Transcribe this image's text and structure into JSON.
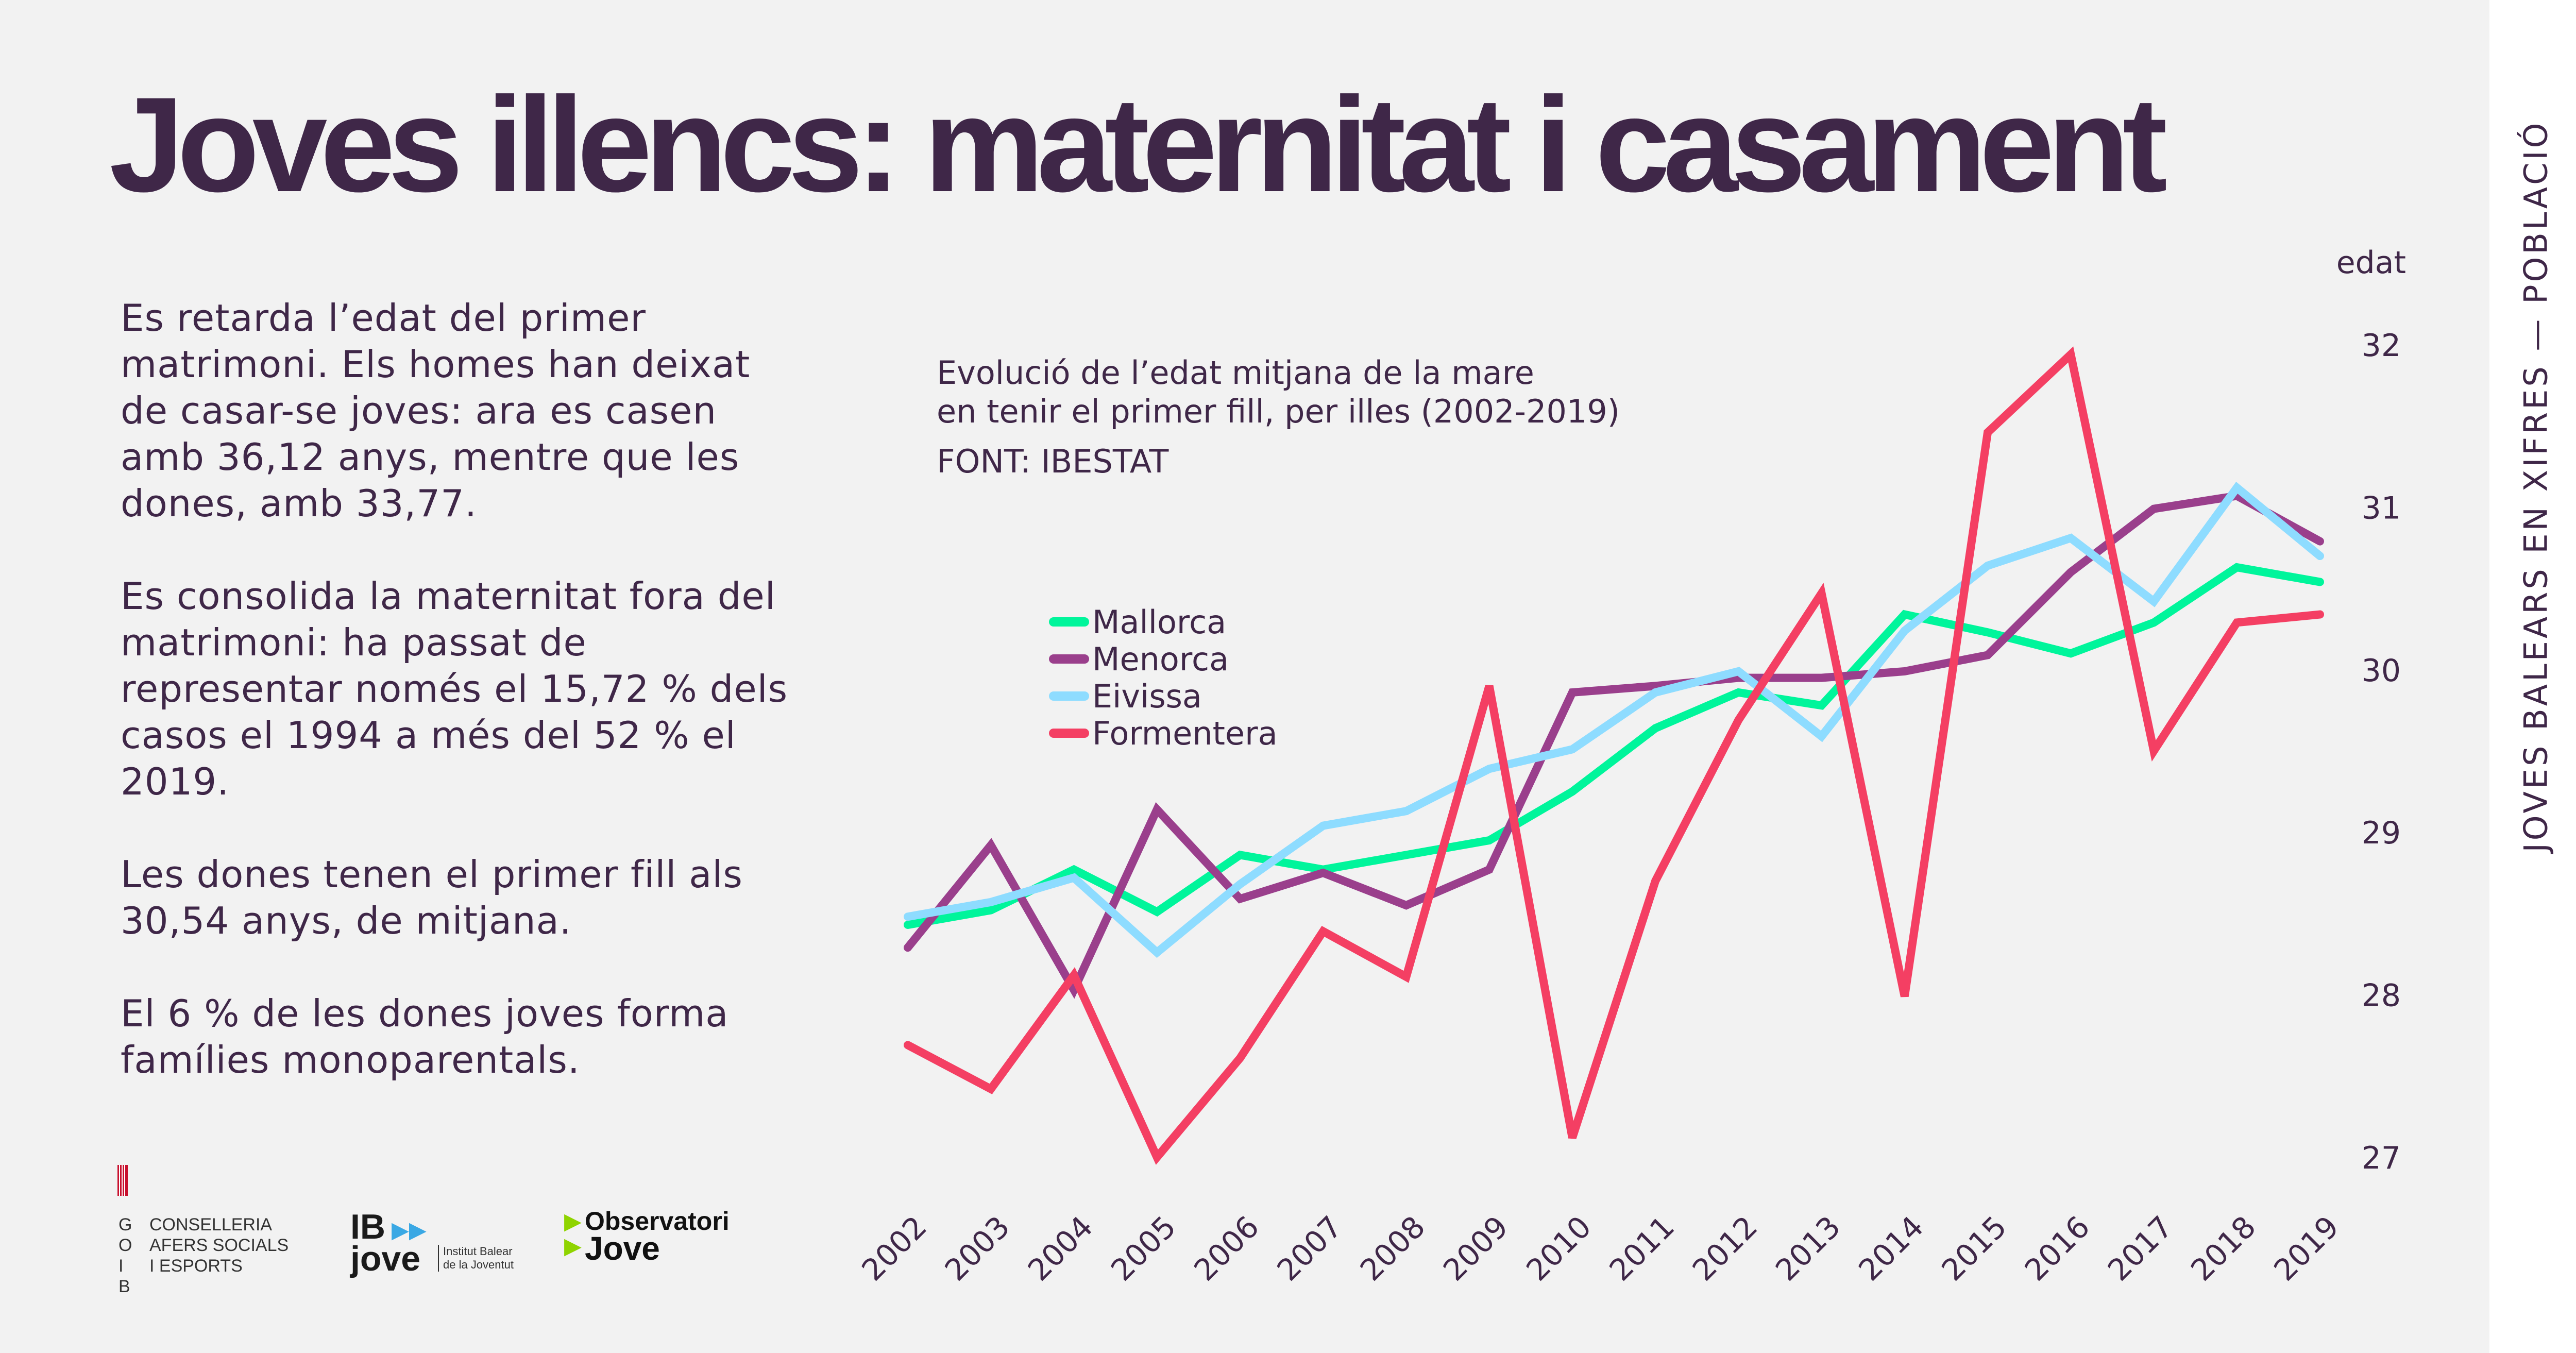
{
  "title": "Joves illencs: maternitat i casament",
  "side_label": "JOVES BALEARS EN XIFRES — POBLACIÓ",
  "paragraphs": [
    "Es retarda l’edat del primer matrimoni. Els homes han deixat de casar-se joves: ara es casen amb 36,12 anys, mentre que les dones, amb 33,77.",
    "Es consolida la maternitat fora del matrimoni: ha passat de representar només el 15,72 % dels casos el 1994 a més del 52 % el 2019.",
    "Les dones tenen el primer fill als 30,54 anys, de mitjana.",
    "El 6 % de les dones joves forma famílies monoparentals."
  ],
  "logos": {
    "goib": {
      "letters": "GOIB",
      "lines": [
        "CONSELLERIA",
        "AFERS SOCIALS",
        "I ESPORTS"
      ]
    },
    "ibjove": {
      "top": "IB",
      "bottom": "jove",
      "caption": [
        "Institut Balear",
        "de la Joventut"
      ]
    },
    "observatori": {
      "top": "Observatori",
      "bottom": "Jove"
    }
  },
  "chart_data": {
    "type": "line",
    "title": "Evolució de l’edat mitjana de la mare en tenir el primer fill, per illes (2002-2019)",
    "title_lines": [
      "Evolució de l’edat mitjana de la mare",
      "en tenir el primer fill, per illes (2002-2019)"
    ],
    "source": "FONT: IBESTAT",
    "ylabel": "edat",
    "ylim": [
      27,
      32
    ],
    "yticks": [
      27,
      28,
      29,
      30,
      31,
      32
    ],
    "y_axis_position": "right",
    "grid": false,
    "legend_position": "middle-left",
    "x": [
      "2002",
      "2003",
      "2004",
      "2005",
      "2006",
      "2007",
      "2008",
      "2009",
      "2010",
      "2011",
      "2012",
      "2013",
      "2014",
      "2015",
      "2016",
      "2017",
      "2018",
      "2019"
    ],
    "series": [
      {
        "name": "Mallorca",
        "color": "#00f59b",
        "values": [
          28.43,
          28.52,
          28.77,
          28.51,
          28.86,
          28.77,
          28.86,
          28.95,
          29.25,
          29.64,
          29.86,
          29.78,
          30.34,
          30.23,
          30.1,
          30.29,
          30.63,
          30.54
        ]
      },
      {
        "name": "Menorca",
        "color": "#9a3f8c",
        "values": [
          28.29,
          28.92,
          28.03,
          29.14,
          28.59,
          28.75,
          28.55,
          28.77,
          29.86,
          29.9,
          29.95,
          29.95,
          29.99,
          30.09,
          30.6,
          30.99,
          31.07,
          30.79
        ]
      },
      {
        "name": "Eivissa",
        "color": "#8edcff",
        "values": [
          28.48,
          28.57,
          28.72,
          28.26,
          28.68,
          29.04,
          29.13,
          29.39,
          29.51,
          29.86,
          29.99,
          29.59,
          30.24,
          30.64,
          30.81,
          30.42,
          31.12,
          30.7
        ]
      },
      {
        "name": "Formentera",
        "color": "#f43f63",
        "values": [
          27.69,
          27.42,
          28.12,
          27.0,
          27.61,
          28.39,
          28.11,
          29.9,
          27.12,
          28.7,
          29.69,
          30.47,
          27.99,
          31.46,
          31.94,
          29.5,
          30.29,
          30.34
        ]
      }
    ]
  }
}
